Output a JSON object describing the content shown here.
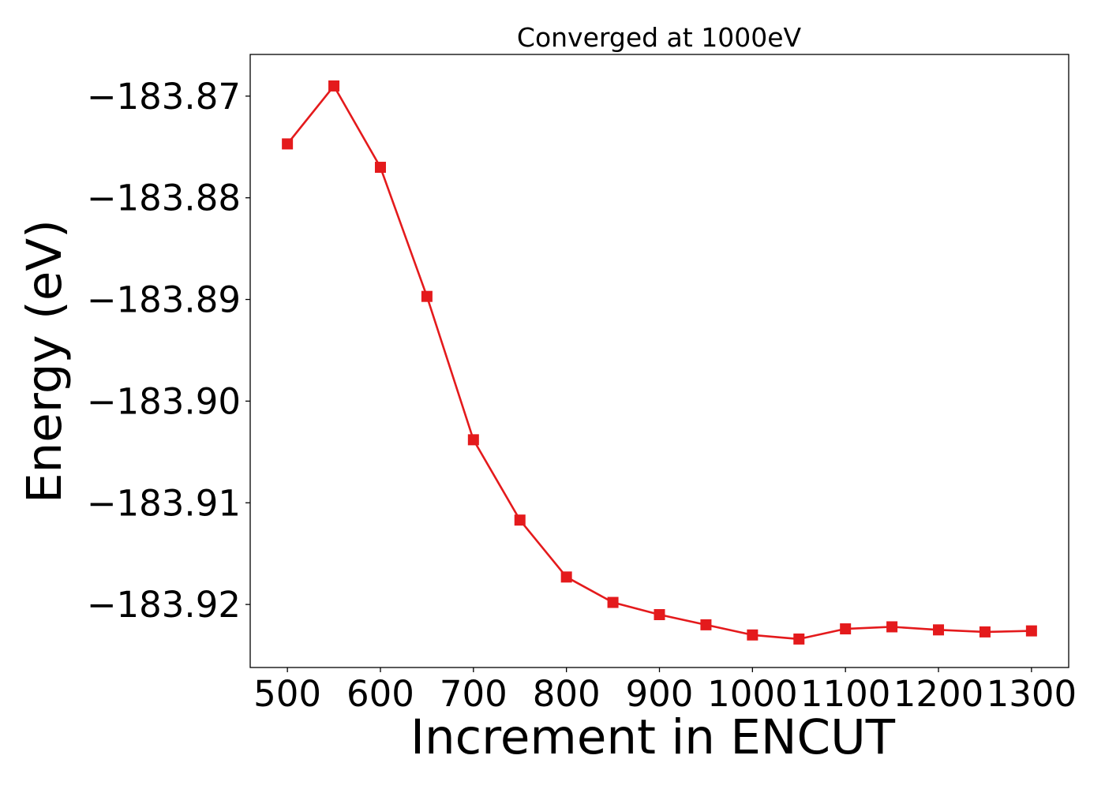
{
  "chart_data": {
    "type": "line",
    "title": "Converged at 1000eV",
    "xlabel": "Increment in ENCUT",
    "ylabel": "Energy (eV)",
    "xlim": [
      460,
      1340
    ],
    "ylim": [
      -183.9262,
      -183.8659
    ],
    "xticks": [
      500,
      600,
      700,
      800,
      900,
      1000,
      1100,
      1200,
      1300
    ],
    "xtick_labels": [
      "500",
      "600",
      "700",
      "800",
      "900",
      "1000",
      "1100",
      "1200",
      "1300"
    ],
    "yticks": [
      -183.87,
      -183.88,
      -183.89,
      -183.9,
      -183.91,
      -183.92
    ],
    "ytick_labels": [
      "−183.87",
      "−183.88",
      "−183.89",
      "−183.90",
      "−183.91",
      "−183.92"
    ],
    "grid": false,
    "series": [
      {
        "color": "#e41a1c",
        "marker": "square",
        "x": [
          500,
          550,
          600,
          650,
          700,
          750,
          800,
          850,
          900,
          950,
          1000,
          1050,
          1100,
          1150,
          1200,
          1250,
          1300
        ],
        "y": [
          -183.8747,
          -183.869,
          -183.877,
          -183.8897,
          -183.9038,
          -183.9117,
          -183.9173,
          -183.9198,
          -183.921,
          -183.922,
          -183.923,
          -183.9234,
          -183.9224,
          -183.9222,
          -183.9225,
          -183.9227,
          -183.9226
        ]
      }
    ]
  }
}
